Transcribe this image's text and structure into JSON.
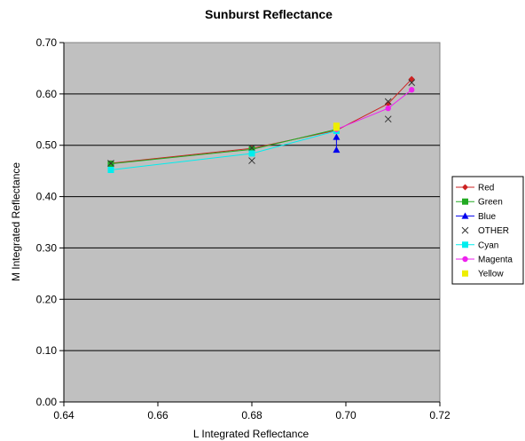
{
  "chart_data": {
    "type": "line",
    "title": "Sunburst Reflectance",
    "xlabel": "L Integrated Reflectance",
    "ylabel": "M Integrated Reflectance",
    "xlim": [
      0.64,
      0.72
    ],
    "ylim": [
      0.0,
      0.7
    ],
    "xticks": [
      "0.64",
      "0.66",
      "0.68",
      "0.70",
      "0.72"
    ],
    "yticks": [
      "0.00",
      "0.10",
      "0.20",
      "0.30",
      "0.40",
      "0.50",
      "0.60",
      "0.70"
    ],
    "grid": "horizontal",
    "plot_background": "#c0c0c0",
    "legend_position": "right",
    "series": [
      {
        "name": "Red",
        "color": "#cc2222",
        "marker": "diamond",
        "line": true,
        "points": [
          [
            0.65,
            0.465
          ],
          [
            0.68,
            0.494
          ],
          [
            0.698,
            0.529
          ],
          [
            0.709,
            0.581
          ],
          [
            0.714,
            0.629
          ]
        ]
      },
      {
        "name": "Green",
        "color": "#22aa22",
        "marker": "square",
        "line": true,
        "points": [
          [
            0.65,
            0.464
          ],
          [
            0.68,
            0.492
          ],
          [
            0.698,
            0.531
          ]
        ]
      },
      {
        "name": "Blue",
        "color": "#0000ee",
        "marker": "triangle",
        "line": true,
        "points": [
          [
            0.698,
            0.491
          ],
          [
            0.698,
            0.516
          ]
        ]
      },
      {
        "name": "OTHER",
        "color": "#333333",
        "marker": "x",
        "line": false,
        "points": [
          [
            0.65,
            0.465
          ],
          [
            0.68,
            0.495
          ],
          [
            0.68,
            0.47
          ],
          [
            0.709,
            0.585
          ],
          [
            0.709,
            0.551
          ],
          [
            0.714,
            0.622
          ]
        ]
      },
      {
        "name": "Cyan",
        "color": "#00eeee",
        "marker": "square",
        "line": true,
        "points": [
          [
            0.65,
            0.452
          ],
          [
            0.68,
            0.484
          ],
          [
            0.698,
            0.528
          ]
        ]
      },
      {
        "name": "Magenta",
        "color": "#ee22ee",
        "marker": "circle",
        "line": true,
        "points": [
          [
            0.698,
            0.531
          ],
          [
            0.709,
            0.572
          ],
          [
            0.714,
            0.608
          ]
        ]
      },
      {
        "name": "Yellow",
        "color": "#eeee00",
        "marker": "square",
        "line": false,
        "points": [
          [
            0.698,
            0.538
          ],
          [
            0.698,
            0.534
          ]
        ]
      }
    ]
  }
}
